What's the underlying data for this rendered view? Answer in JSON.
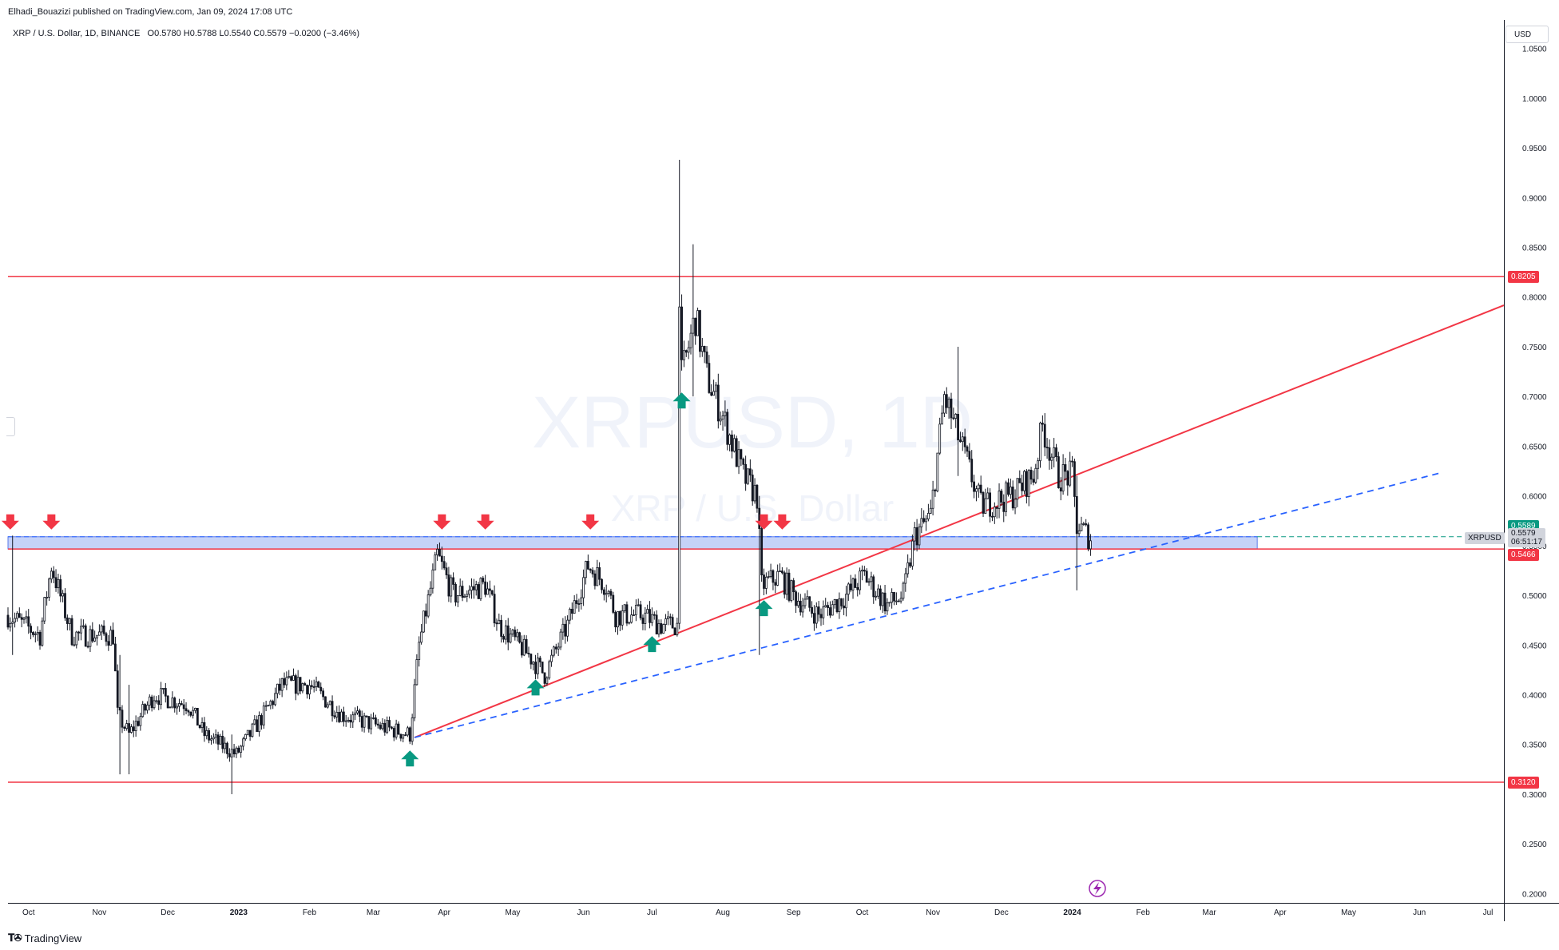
{
  "header": {
    "published": "Elhadi_Bouazizi published on TradingView.com, Jan 09, 2024 17:08 UTC"
  },
  "legend": {
    "symbol": "XRP / U.S. Dollar, 1D, BINANCE",
    "open": "O0.5780",
    "high": "H0.5788",
    "low": "L0.5540",
    "close": "C0.5579",
    "change": "−0.0200 (−3.46%)"
  },
  "watermark": {
    "line1": "XRPUSD, 1D",
    "line2": "XRP / U.S. Dollar"
  },
  "currency": "USD",
  "brand": "TradingView",
  "price_tags": {
    "resistance": "0.8205",
    "support": "0.3120",
    "zone_low": "0.5466",
    "last_top": "0.5589",
    "symbol": "XRPUSD",
    "last": "0.5579",
    "countdown": "06:51:17"
  },
  "colors": {
    "up": "#131722",
    "down": "#131722",
    "level_line": "#f23645",
    "trend_dash": "#2962ff",
    "zone_fill": "#b2c3f5",
    "arrow_down": "#f23645",
    "arrow_up": "#089981",
    "watermark": "#f0f3fa"
  },
  "chart_data": {
    "type": "candlestick",
    "symbol": "XRPUSD",
    "timeframe": "1D",
    "exchange": "BINANCE",
    "x_ticks": [
      "Oct",
      "Nov",
      "Dec",
      "2023",
      "Feb",
      "Mar",
      "Apr",
      "May",
      "Jun",
      "Jul",
      "Aug",
      "Sep",
      "Oct",
      "Nov",
      "Dec",
      "2024",
      "Feb",
      "Mar",
      "Apr",
      "May",
      "Jun",
      "Jul"
    ],
    "y_ticks": [
      "1.0500",
      "1.0000",
      "0.9500",
      "0.9000",
      "0.8500",
      "0.8000",
      "0.7500",
      "0.7000",
      "0.6500",
      "0.6000",
      "0.5500",
      "0.5000",
      "0.4500",
      "0.4000",
      "0.3500",
      "0.3000",
      "0.2500",
      "0.2000"
    ],
    "y_range": [
      0.1907,
      1.0786
    ],
    "x_range": [
      "2022-09-22",
      "2024-07-08"
    ],
    "horizontal_levels": [
      0.8205,
      0.312,
      0.5466
    ],
    "zone": {
      "low": 0.5466,
      "high": 0.5589,
      "from": "2022-09-22",
      "to": "2024-03-22"
    },
    "trendlines": [
      {
        "style": "solid",
        "from": [
          "2023-03-19",
          0.357
        ],
        "to": [
          "2024-07-08",
          0.7917
        ]
      },
      {
        "style": "dashed",
        "from": [
          "2023-03-19",
          0.357
        ],
        "to": [
          "2024-06-10",
          0.623
        ]
      }
    ],
    "annotations": {
      "down_arrows": [
        "2022-09-23",
        "2022-10-11",
        "2023-03-31",
        "2023-04-19",
        "2023-06-04",
        "2023-08-19",
        "2023-08-27"
      ],
      "up_arrows": [
        "2023-03-17",
        "2023-05-11",
        "2023-07-01",
        "2023-07-14",
        "2023-08-19"
      ]
    },
    "anchors": [
      {
        "d": "2022-09-22",
        "p": 0.48
      },
      {
        "d": "2022-10-06",
        "p": 0.46
      },
      {
        "d": "2022-10-11",
        "p": 0.53
      },
      {
        "d": "2022-10-20",
        "p": 0.46
      },
      {
        "d": "2022-11-07",
        "p": 0.46
      },
      {
        "d": "2022-11-09",
        "p": 0.38
      },
      {
        "d": "2022-11-14",
        "p": 0.36
      },
      {
        "d": "2022-11-25",
        "p": 0.4
      },
      {
        "d": "2022-12-10",
        "p": 0.39
      },
      {
        "d": "2022-12-17",
        "p": 0.36
      },
      {
        "d": "2022-12-31",
        "p": 0.34
      },
      {
        "d": "2023-01-12",
        "p": 0.38
      },
      {
        "d": "2023-01-20",
        "p": 0.41
      },
      {
        "d": "2023-02-01",
        "p": 0.41
      },
      {
        "d": "2023-02-15",
        "p": 0.38
      },
      {
        "d": "2023-03-01",
        "p": 0.37
      },
      {
        "d": "2023-03-17",
        "p": 0.36
      },
      {
        "d": "2023-03-21",
        "p": 0.45
      },
      {
        "d": "2023-03-29",
        "p": 0.54
      },
      {
        "d": "2023-04-05",
        "p": 0.5
      },
      {
        "d": "2023-04-19",
        "p": 0.51
      },
      {
        "d": "2023-04-25",
        "p": 0.47
      },
      {
        "d": "2023-05-08",
        "p": 0.44
      },
      {
        "d": "2023-05-15",
        "p": 0.42
      },
      {
        "d": "2023-05-25",
        "p": 0.47
      },
      {
        "d": "2023-06-03",
        "p": 0.53
      },
      {
        "d": "2023-06-11",
        "p": 0.51
      },
      {
        "d": "2023-06-15",
        "p": 0.48
      },
      {
        "d": "2023-06-27",
        "p": 0.48
      },
      {
        "d": "2023-07-05",
        "p": 0.47
      },
      {
        "d": "2023-07-12",
        "p": 0.47
      },
      {
        "d": "2023-07-13",
        "p": 0.81
      },
      {
        "d": "2023-07-14",
        "p": 0.72
      },
      {
        "d": "2023-07-20",
        "p": 0.78
      },
      {
        "d": "2023-07-25",
        "p": 0.72
      },
      {
        "d": "2023-08-01",
        "p": 0.68
      },
      {
        "d": "2023-08-10",
        "p": 0.62
      },
      {
        "d": "2023-08-16",
        "p": 0.6
      },
      {
        "d": "2023-08-18",
        "p": 0.51
      },
      {
        "d": "2023-08-26",
        "p": 0.52
      },
      {
        "d": "2023-09-01",
        "p": 0.5
      },
      {
        "d": "2023-09-12",
        "p": 0.48
      },
      {
        "d": "2023-09-24",
        "p": 0.5
      },
      {
        "d": "2023-10-02",
        "p": 0.52
      },
      {
        "d": "2023-10-12",
        "p": 0.49
      },
      {
        "d": "2023-10-19",
        "p": 0.5
      },
      {
        "d": "2023-10-24",
        "p": 0.56
      },
      {
        "d": "2023-10-31",
        "p": 0.58
      },
      {
        "d": "2023-11-06",
        "p": 0.7
      },
      {
        "d": "2023-11-15",
        "p": 0.64
      },
      {
        "d": "2023-11-22",
        "p": 0.59
      },
      {
        "d": "2023-12-05",
        "p": 0.6
      },
      {
        "d": "2023-12-15",
        "p": 0.62
      },
      {
        "d": "2023-12-19",
        "p": 0.67
      },
      {
        "d": "2023-12-26",
        "p": 0.62
      },
      {
        "d": "2024-01-01",
        "p": 0.62
      },
      {
        "d": "2024-01-03",
        "p": 0.57
      },
      {
        "d": "2024-01-09",
        "p": 0.558
      }
    ],
    "spikes": [
      {
        "d": "2022-09-24",
        "h": 0.56,
        "l": 0.44
      },
      {
        "d": "2022-11-10",
        "h": 0.44,
        "l": 0.32
      },
      {
        "d": "2022-11-14",
        "h": 0.41,
        "l": 0.32
      },
      {
        "d": "2022-12-29",
        "h": 0.36,
        "l": 0.3
      },
      {
        "d": "2023-07-13",
        "h": 0.938,
        "l": 0.47
      },
      {
        "d": "2023-07-19",
        "h": 0.853,
        "l": 0.7
      },
      {
        "d": "2023-08-17",
        "h": 0.6,
        "l": 0.44
      },
      {
        "d": "2023-11-12",
        "h": 0.75,
        "l": 0.62
      },
      {
        "d": "2024-01-03",
        "h": 0.62,
        "l": 0.505
      }
    ]
  }
}
